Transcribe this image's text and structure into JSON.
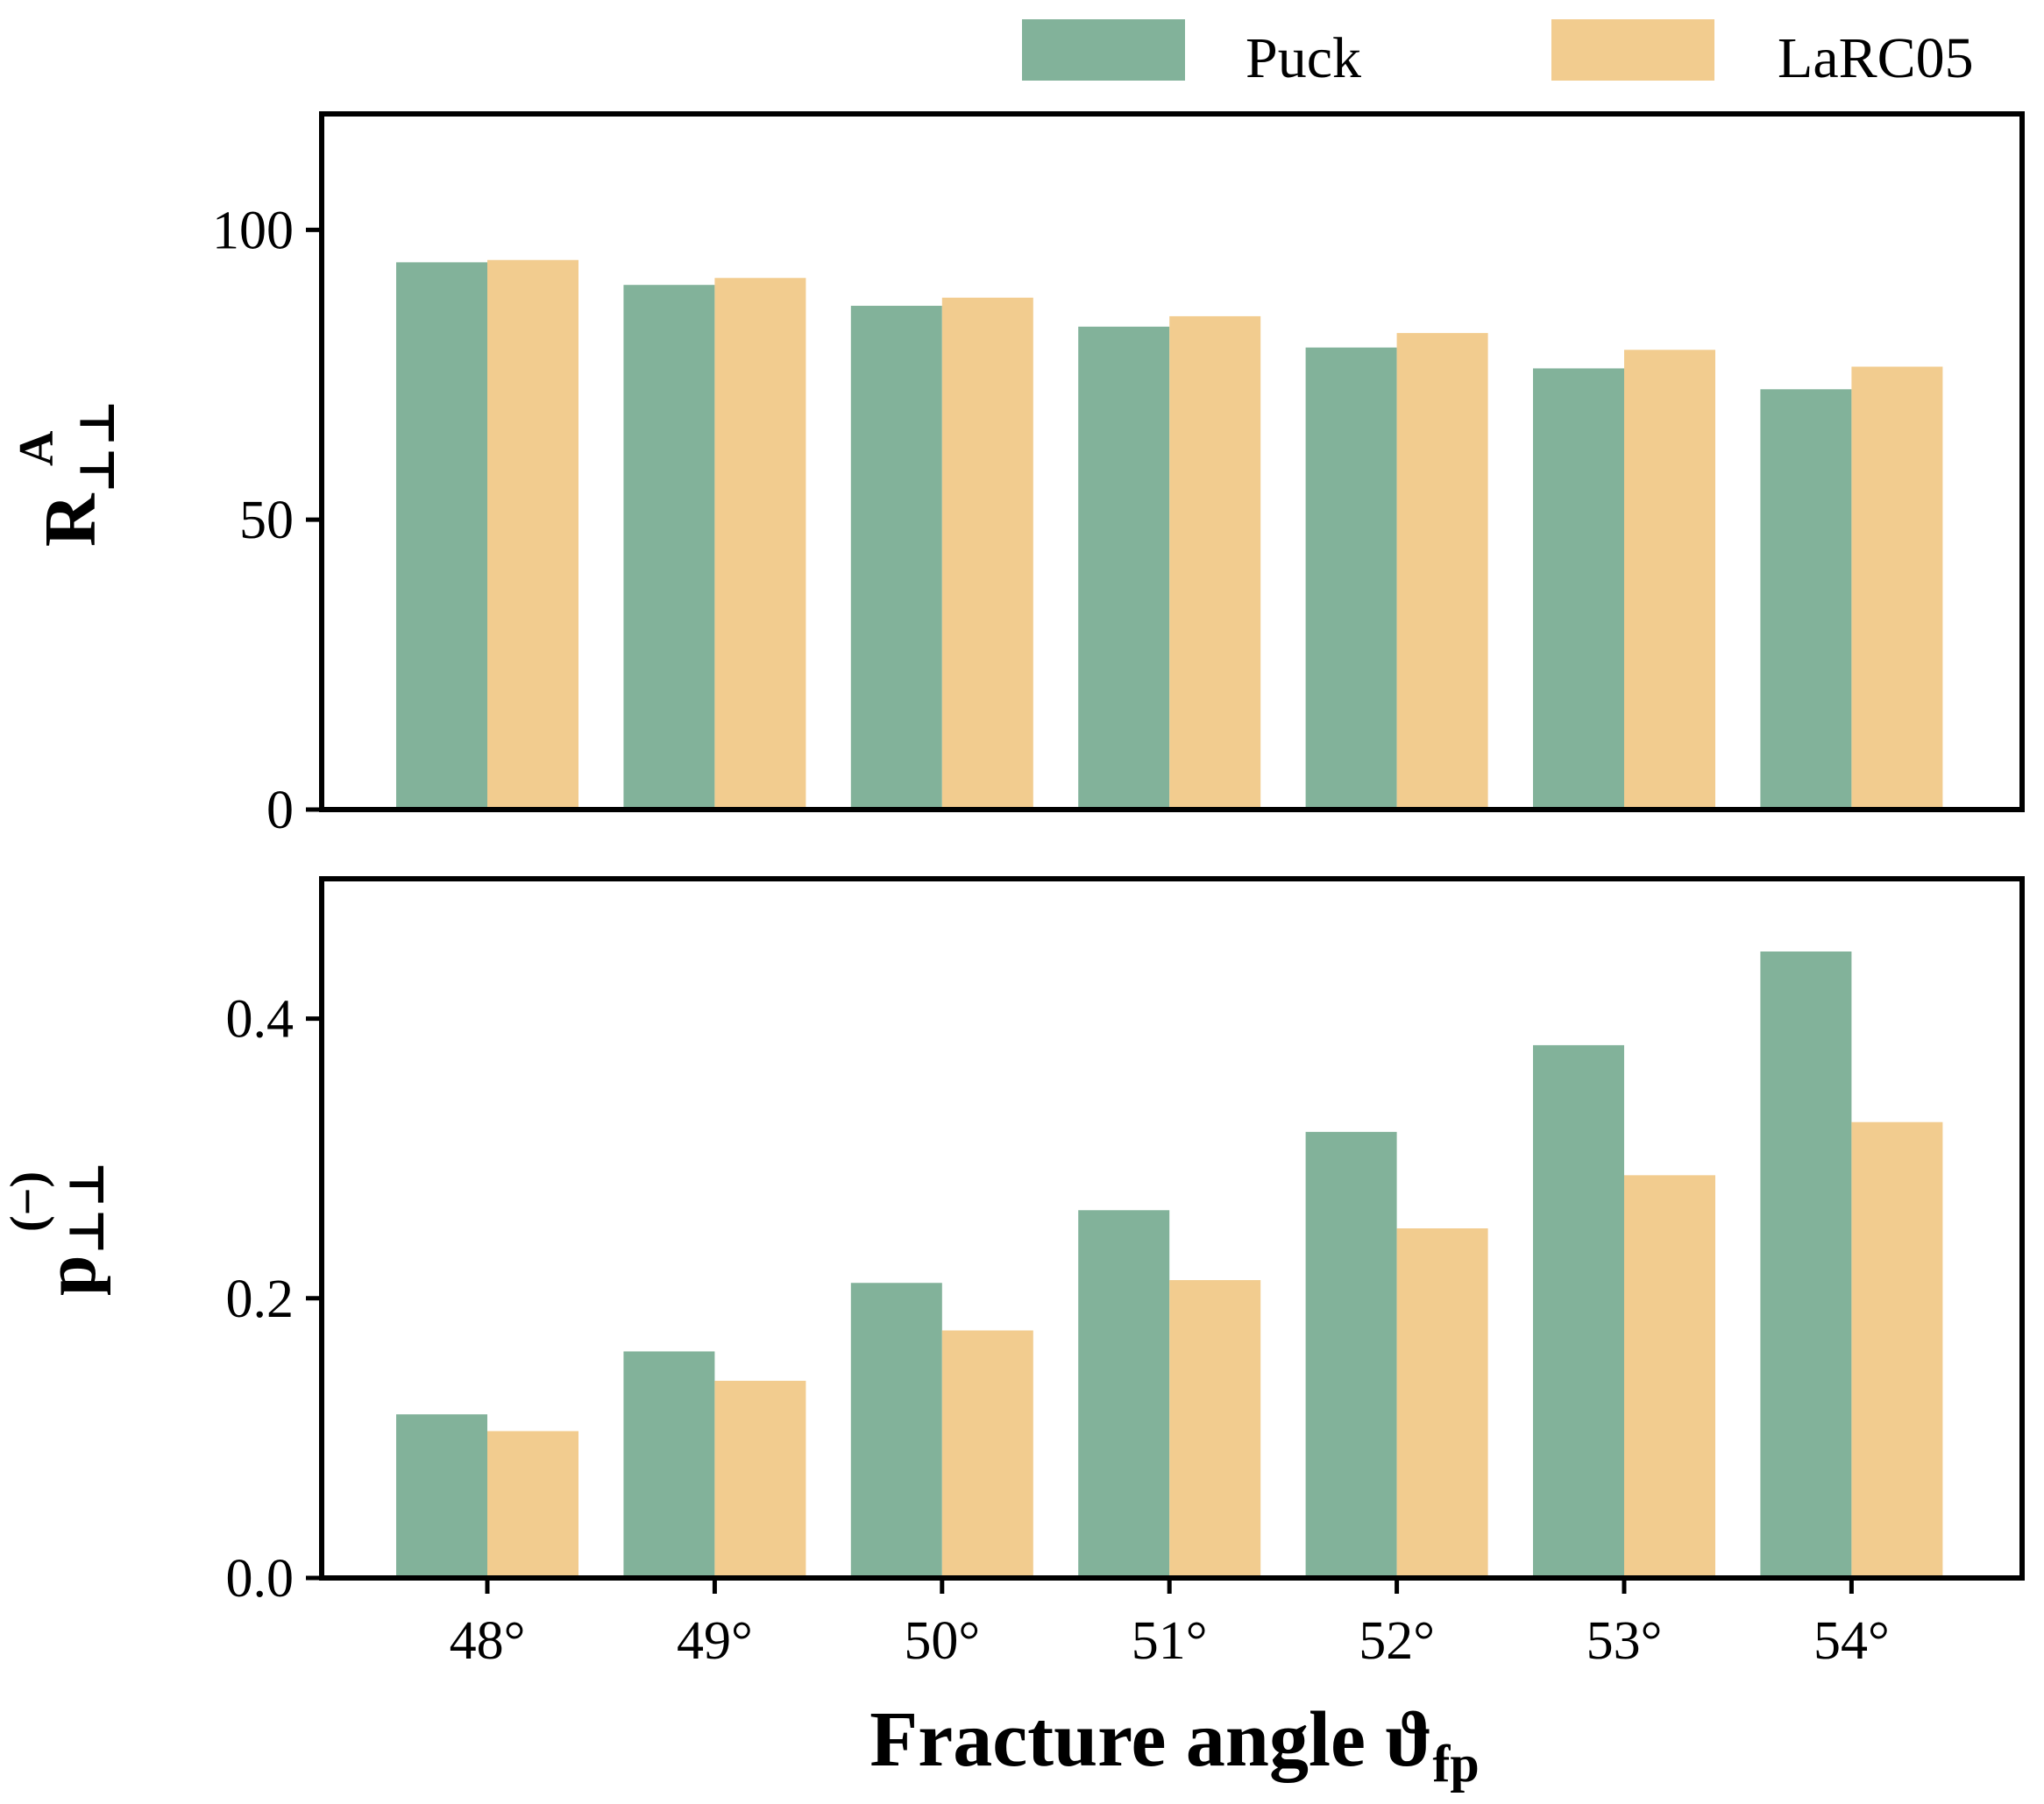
{
  "chart_data": [
    {
      "type": "bar",
      "panel": "top",
      "categories": [
        "48°",
        "49°",
        "50°",
        "51°",
        "52°",
        "53°",
        "54°"
      ],
      "series": [
        {
          "name": "Puck",
          "color": "#82b29a",
          "values": [
            94.4,
            90.5,
            86.9,
            83.3,
            79.7,
            76.1,
            72.5
          ]
        },
        {
          "name": "LaRC05",
          "color": "#f2cc8f",
          "values": [
            94.8,
            91.7,
            88.3,
            85.1,
            82.2,
            79.3,
            76.4
          ]
        }
      ],
      "ylabel": "R",
      "ylabel_sup": "A",
      "ylabel_sub": "⊥⊥",
      "ylim": [
        0,
        120
      ],
      "yticks": [
        0,
        50,
        100
      ],
      "ytick_labels": [
        "0",
        "50",
        "100"
      ],
      "grid": false
    },
    {
      "type": "bar",
      "panel": "bottom",
      "categories": [
        "48°",
        "49°",
        "50°",
        "51°",
        "52°",
        "53°",
        "54°"
      ],
      "series": [
        {
          "name": "Puck",
          "color": "#82b29a",
          "values": [
            0.117,
            0.162,
            0.211,
            0.263,
            0.319,
            0.381,
            0.448
          ]
        },
        {
          "name": "LaRC05",
          "color": "#f2cc8f",
          "values": [
            0.105,
            0.141,
            0.177,
            0.213,
            0.25,
            0.288,
            0.326
          ]
        }
      ],
      "ylabel": "p",
      "ylabel_sup": "(−)",
      "ylabel_sub": "⊥⊥",
      "ylim": [
        0,
        0.5
      ],
      "yticks": [
        0,
        0.2,
        0.4
      ],
      "ytick_labels": [
        "0.0",
        "0.2",
        "0.4"
      ],
      "xlabel": "Fracture angle ϑ",
      "xlabel_sub": "fp",
      "grid": false
    }
  ],
  "legend": {
    "placement": "top-right",
    "items": [
      {
        "label": "Puck",
        "color": "#82b29a"
      },
      {
        "label": "LaRC05",
        "color": "#f2cc8f"
      }
    ]
  }
}
